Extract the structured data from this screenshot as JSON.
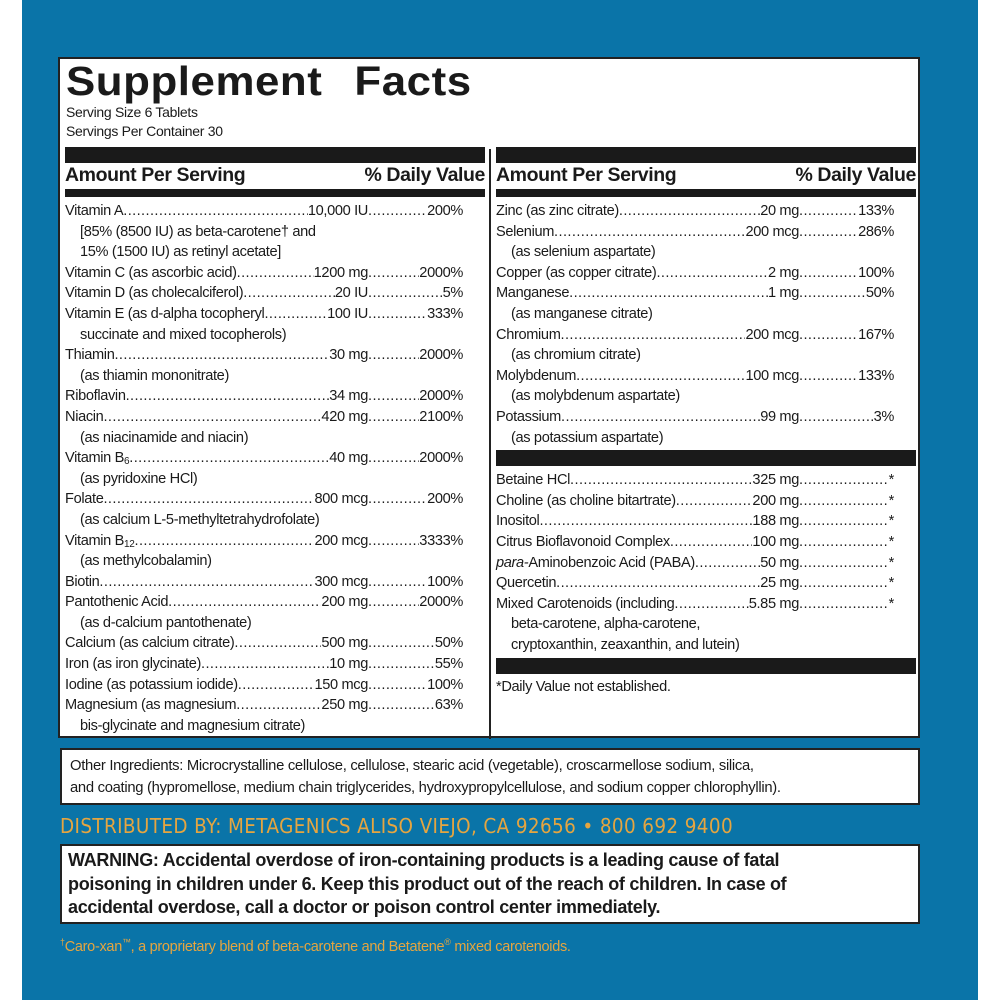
{
  "colors": {
    "background": "#0a74a8",
    "accent": "#e5a540",
    "label": "#ffffff",
    "text": "#1a1a1a"
  },
  "title": "Supplement Facts",
  "serving_size": "Serving Size 6 Tablets",
  "servings_per_container": "Servings Per Container 30",
  "header": {
    "amount": "Amount Per Serving",
    "dv": "% Daily Value"
  },
  "left_rows": [
    {
      "name": "Vitamin A",
      "amount": "10,000 IU",
      "dv": "200%",
      "notes": [
        "[85% (8500 IU) as beta-carotene† and",
        "15% (1500 IU) as retinyl acetate]"
      ]
    },
    {
      "name": "Vitamin C (as ascorbic acid)",
      "amount": "1200 mg",
      "dv": "2000%",
      "notes": []
    },
    {
      "name": "Vitamin D (as cholecalciferol)",
      "amount": "20 IU",
      "dv": "5%",
      "notes": []
    },
    {
      "name": "Vitamin E (as d-alpha tocopheryl",
      "amount": "100 IU",
      "dv": "333%",
      "notes": [
        "succinate and mixed tocopherols)"
      ]
    },
    {
      "name": "Thiamin",
      "amount": "30 mg",
      "dv": "2000%",
      "notes": [
        "(as thiamin mononitrate)"
      ]
    },
    {
      "name": "Riboflavin",
      "amount": "34 mg",
      "dv": "2000%",
      "notes": []
    },
    {
      "name": "Niacin",
      "amount": "420 mg",
      "dv": "2100%",
      "notes": [
        "(as niacinamide and niacin)"
      ]
    },
    {
      "name": "Vitamin B",
      "sub": "6",
      "amount": "40 mg",
      "dv": "2000%",
      "notes": [
        "(as pyridoxine HCl)"
      ]
    },
    {
      "name": "Folate",
      "amount": "800 mcg",
      "dv": "200%",
      "notes": [
        "(as calcium L-5-methyltetrahydrofolate)"
      ]
    },
    {
      "name": "Vitamin B",
      "sub": "12",
      "amount": "200 mcg",
      "dv": "3333%",
      "notes": [
        "(as methylcobalamin)"
      ]
    },
    {
      "name": "Biotin",
      "amount": "300 mcg",
      "dv": "100%",
      "notes": []
    },
    {
      "name": "Pantothenic Acid",
      "amount": "200 mg",
      "dv": "2000%",
      "notes": [
        "(as d-calcium pantothenate)"
      ]
    },
    {
      "name": "Calcium (as calcium citrate)",
      "amount": "500 mg",
      "dv": "50%",
      "notes": []
    },
    {
      "name": "Iron (as iron glycinate)",
      "amount": "10 mg",
      "dv": "55%",
      "notes": []
    },
    {
      "name": "Iodine (as potassium iodide)",
      "amount": "150 mcg",
      "dv": "100%",
      "notes": []
    },
    {
      "name": "Magnesium (as magnesium",
      "amount": "250 mg",
      "dv": "63%",
      "notes": [
        "bis-glycinate and magnesium citrate)"
      ]
    }
  ],
  "right_rows": [
    {
      "name": "Zinc (as zinc citrate)",
      "amount": "20 mg",
      "dv": "133%",
      "notes": []
    },
    {
      "name": "Selenium",
      "amount": "200 mcg",
      "dv": "286%",
      "notes": [
        "(as selenium aspartate)"
      ]
    },
    {
      "name": "Copper (as copper citrate)",
      "amount": "2 mg",
      "dv": "100%",
      "notes": []
    },
    {
      "name": "Manganese",
      "amount": "1 mg",
      "dv": "50%",
      "notes": [
        "(as manganese citrate)"
      ]
    },
    {
      "name": "Chromium",
      "amount": "200 mcg",
      "dv": "167%",
      "notes": [
        "(as chromium citrate)"
      ]
    },
    {
      "name": "Molybdenum",
      "amount": "100 mcg",
      "dv": "133%",
      "notes": [
        "(as molybdenum aspartate)"
      ]
    },
    {
      "name": "Potassium",
      "amount": "99 mg",
      "dv": "3%",
      "notes": [
        "(as potassium aspartate)"
      ]
    }
  ],
  "other_rows": [
    {
      "name": "Betaine HCl",
      "amount": "325 mg",
      "dv": "*",
      "notes": []
    },
    {
      "name": "Choline (as choline bitartrate)",
      "amount": "200 mg",
      "dv": "*",
      "notes": []
    },
    {
      "name": "Inositol",
      "amount": "188 mg",
      "dv": "*",
      "notes": []
    },
    {
      "name": "Citrus Bioflavonoid Complex",
      "amount": "100 mg",
      "dv": "*",
      "notes": []
    },
    {
      "italic_prefix": "para-",
      "name": "Aminobenzoic Acid (PABA)",
      "amount": "50 mg",
      "dv": "*",
      "notes": []
    },
    {
      "name": "Quercetin",
      "amount": "25 mg",
      "dv": "*",
      "notes": []
    },
    {
      "name": "Mixed Carotenoids (including",
      "amount": "5.85 mg",
      "dv": "*",
      "notes": [
        "beta-carotene, alpha-carotene,",
        "cryptoxanthin, zeaxanthin, and lutein)"
      ]
    }
  ],
  "dv_footnote": "*Daily Value not established.",
  "other_ingredients": [
    "Other Ingredients: Microcrystalline cellulose, cellulose, stearic acid (vegetable), croscarmellose sodium, silica,",
    "and coating (hypromellose, medium chain triglycerides, hydroxypropylcellulose, and sodium copper chlorophyllin)."
  ],
  "distributed_by": "DISTRIBUTED BY: METAGENICS ALISO VIEJO, CA 92656 • 800 692 9400",
  "warning": [
    "WARNING: Accidental overdose of iron-containing products is a leading cause of fatal",
    "poisoning in children under 6. Keep this product out of the reach of children. In case of",
    "accidental overdose, call a doctor or poison control center immediately."
  ],
  "footnote": {
    "dagger": "†",
    "text1": "Caro-xan",
    "tm": "™",
    "text2": ", a proprietary blend of beta-carotene and Betatene",
    "reg": "®",
    "text3": " mixed carotenoids."
  }
}
